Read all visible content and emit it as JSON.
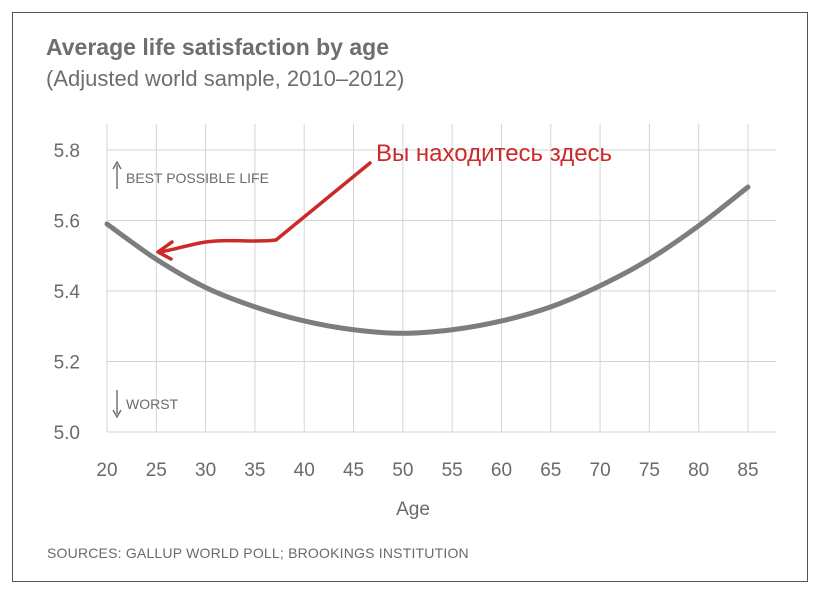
{
  "chart_data": {
    "type": "line",
    "title": "Average life satisfaction by age",
    "subtitle": "(Adjusted world sample, 2010–2012)",
    "xlabel": "Age",
    "ylabel": "",
    "x": [
      20,
      25,
      30,
      35,
      40,
      45,
      50,
      55,
      60,
      65,
      70,
      75,
      80,
      85
    ],
    "series": [
      {
        "values": [
          5.59,
          5.49,
          5.41,
          5.355,
          5.315,
          5.29,
          5.28,
          5.29,
          5.315,
          5.355,
          5.415,
          5.49,
          5.585,
          5.695
        ]
      }
    ],
    "xlim": [
      20,
      85
    ],
    "ylim": [
      5.0,
      5.8
    ],
    "yticks": [
      "5.0",
      "5.2",
      "5.4",
      "5.6",
      "5.8"
    ],
    "xticks": [
      "20",
      "25",
      "30",
      "35",
      "40",
      "45",
      "50",
      "55",
      "60",
      "65",
      "70",
      "75",
      "80",
      "85"
    ],
    "grid": true,
    "annotations": {
      "best": "BEST POSSIBLE LIFE",
      "worst": "WORST",
      "you_are_here": "Вы находитесь здесь"
    },
    "source": "SOURCES: GALLUP WORLD POLL; BROOKINGS INSTITUTION",
    "colors": {
      "line": "#7d7d7d",
      "grid": "#d4d4d4",
      "annotation": "#cc2a2a"
    }
  }
}
